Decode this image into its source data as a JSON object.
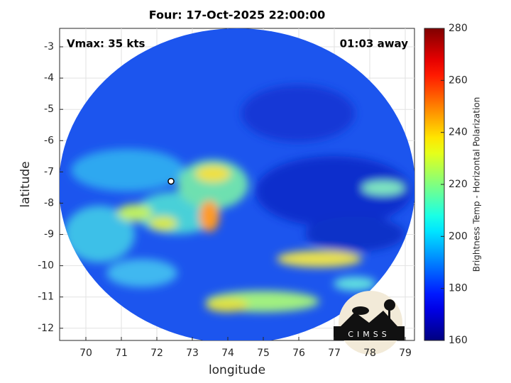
{
  "chart_data": {
    "type": "heatmap",
    "title": "Four: 17-Oct-2025 22:00:00",
    "xlabel": "longitude",
    "ylabel": "latitude",
    "xlim": [
      69.26,
      79.26
    ],
    "xticks": [
      70,
      71,
      72,
      73,
      74,
      75,
      76,
      77,
      78,
      79
    ],
    "ylim": [
      -12.39,
      -2.41
    ],
    "yticks": [
      -3,
      -4,
      -5,
      -6,
      -7,
      -8,
      -9,
      -10,
      -11,
      -12
    ],
    "grid": true,
    "annotations": [
      "Vmax: 35 kts",
      "01:03 away"
    ],
    "center": {
      "x": 72.4,
      "y": -7.3
    },
    "colorbar": {
      "label": "Brightness Temp - Horizontal Polarization",
      "clim": [
        160,
        280
      ],
      "ticks": [
        160,
        180,
        200,
        220,
        240,
        260,
        280
      ],
      "colormap": "jet"
    },
    "logo": "CIMSS"
  }
}
